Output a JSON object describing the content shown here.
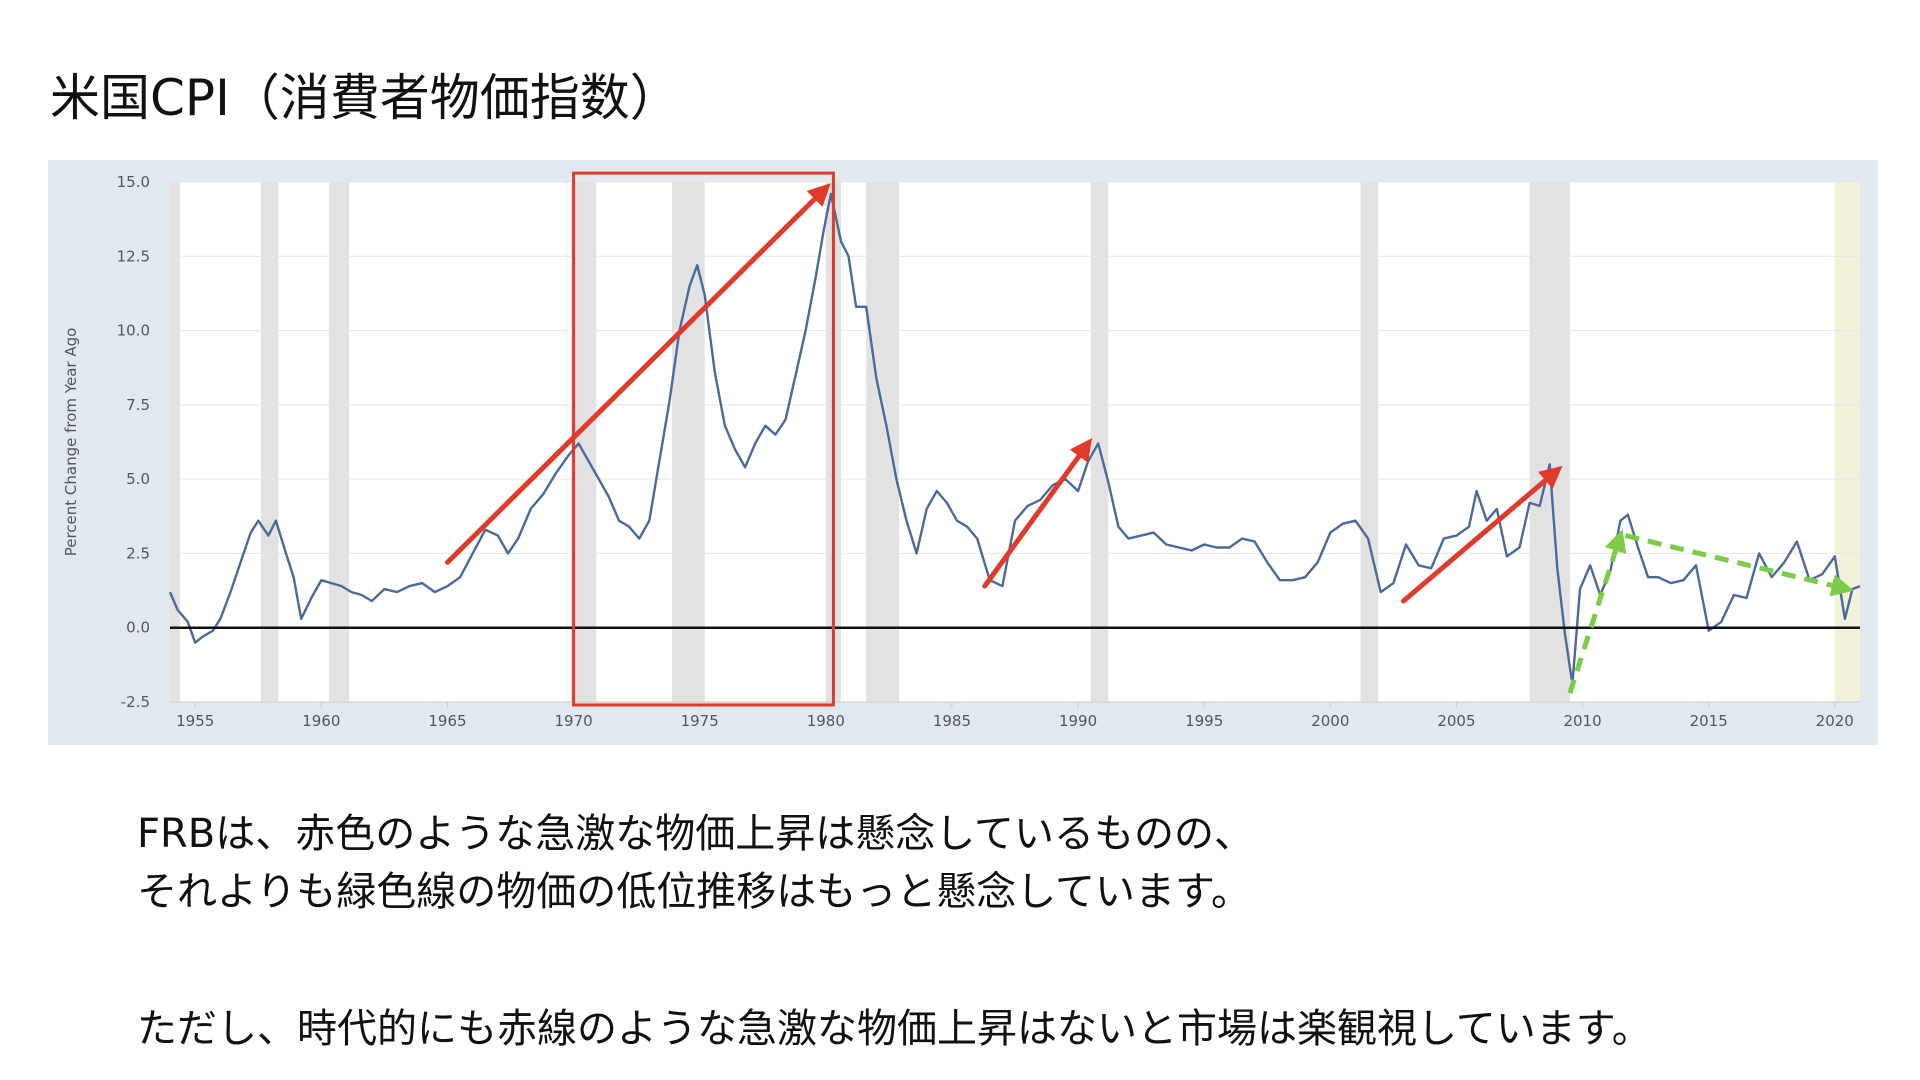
{
  "slide": {
    "title": "米国CPI（消費者物価指数）",
    "text_lines": [
      "FRBは、赤色のような急激な物価上昇は懸念しているものの、",
      "それよりも緑色線の物価の低位推移はもっと懸念しています。",
      "ただし、時代的にも赤線のような急激な物価上昇はないと市場は楽観視しています。"
    ]
  },
  "colors": {
    "series": "#4a6a9c",
    "recession": "#e2e2e2",
    "forecast": "#f2f2dc",
    "annotation_red": "#e03a2a",
    "annotation_green": "#7ccc4a",
    "panel": "#e1e9f0"
  },
  "chart_data": {
    "type": "line",
    "ylabel": "Percent Change from Year Ago",
    "xlim": [
      1954,
      2021
    ],
    "ylim": [
      -2.5,
      15.0
    ],
    "y_ticks": [
      "15.0",
      "12.5",
      "10.0",
      "7.5",
      "5.0",
      "2.5",
      "0.0",
      "-2.5"
    ],
    "y_tick_values": [
      15.0,
      12.5,
      10.0,
      7.5,
      5.0,
      2.5,
      0.0,
      -2.5
    ],
    "x_ticks": [
      "1955",
      "1960",
      "1965",
      "1970",
      "1975",
      "1980",
      "1985",
      "1990",
      "1995",
      "2000",
      "2005",
      "2010",
      "2015",
      "2020"
    ],
    "x_tick_values": [
      1955,
      1960,
      1965,
      1970,
      1975,
      1980,
      1985,
      1990,
      1995,
      2000,
      2005,
      2010,
      2015,
      2020
    ],
    "recessions": [
      [
        1953.6,
        1954.4
      ],
      [
        1957.6,
        1958.3
      ],
      [
        1960.3,
        1961.1
      ],
      [
        1969.9,
        1970.9
      ],
      [
        1973.9,
        1975.2
      ],
      [
        1980.0,
        1980.6
      ],
      [
        1981.6,
        1982.9
      ],
      [
        1990.5,
        1991.2
      ],
      [
        2001.2,
        2001.9
      ],
      [
        2007.9,
        2009.5
      ]
    ],
    "highlight_region": [
      2020.0,
      2021.0
    ],
    "series": [
      {
        "values": [
          [
            1954.0,
            1.2
          ],
          [
            1954.3,
            0.6
          ],
          [
            1954.7,
            0.2
          ],
          [
            1955.0,
            -0.5
          ],
          [
            1955.3,
            -0.3
          ],
          [
            1955.7,
            -0.1
          ],
          [
            1956.0,
            0.3
          ],
          [
            1956.4,
            1.2
          ],
          [
            1956.8,
            2.2
          ],
          [
            1957.2,
            3.2
          ],
          [
            1957.5,
            3.6
          ],
          [
            1957.9,
            3.1
          ],
          [
            1958.2,
            3.6
          ],
          [
            1958.6,
            2.5
          ],
          [
            1958.9,
            1.7
          ],
          [
            1959.2,
            0.3
          ],
          [
            1959.6,
            1.0
          ],
          [
            1960.0,
            1.6
          ],
          [
            1960.4,
            1.5
          ],
          [
            1960.8,
            1.4
          ],
          [
            1961.2,
            1.2
          ],
          [
            1961.6,
            1.1
          ],
          [
            1962.0,
            0.9
          ],
          [
            1962.5,
            1.3
          ],
          [
            1963.0,
            1.2
          ],
          [
            1963.5,
            1.4
          ],
          [
            1964.0,
            1.5
          ],
          [
            1964.5,
            1.2
          ],
          [
            1965.0,
            1.4
          ],
          [
            1965.5,
            1.7
          ],
          [
            1966.0,
            2.5
          ],
          [
            1966.5,
            3.3
          ],
          [
            1967.0,
            3.1
          ],
          [
            1967.4,
            2.5
          ],
          [
            1967.8,
            3.0
          ],
          [
            1968.3,
            4.0
          ],
          [
            1968.8,
            4.5
          ],
          [
            1969.3,
            5.2
          ],
          [
            1969.8,
            5.8
          ],
          [
            1970.2,
            6.2
          ],
          [
            1970.6,
            5.6
          ],
          [
            1971.0,
            5.0
          ],
          [
            1971.4,
            4.4
          ],
          [
            1971.8,
            3.6
          ],
          [
            1972.2,
            3.4
          ],
          [
            1972.6,
            3.0
          ],
          [
            1973.0,
            3.6
          ],
          [
            1973.4,
            5.6
          ],
          [
            1973.8,
            7.6
          ],
          [
            1974.2,
            10.0
          ],
          [
            1974.6,
            11.5
          ],
          [
            1974.9,
            12.2
          ],
          [
            1975.2,
            11.2
          ],
          [
            1975.6,
            8.6
          ],
          [
            1976.0,
            6.8
          ],
          [
            1976.4,
            6.0
          ],
          [
            1976.8,
            5.4
          ],
          [
            1977.2,
            6.2
          ],
          [
            1977.6,
            6.8
          ],
          [
            1978.0,
            6.5
          ],
          [
            1978.4,
            7.0
          ],
          [
            1978.8,
            8.5
          ],
          [
            1979.2,
            10.0
          ],
          [
            1979.6,
            11.8
          ],
          [
            1979.9,
            13.3
          ],
          [
            1980.2,
            14.6
          ],
          [
            1980.6,
            13.0
          ],
          [
            1980.9,
            12.5
          ],
          [
            1981.2,
            10.8
          ],
          [
            1981.6,
            10.8
          ],
          [
            1982.0,
            8.4
          ],
          [
            1982.4,
            6.8
          ],
          [
            1982.8,
            5.0
          ],
          [
            1983.2,
            3.6
          ],
          [
            1983.6,
            2.5
          ],
          [
            1984.0,
            4.0
          ],
          [
            1984.4,
            4.6
          ],
          [
            1984.8,
            4.2
          ],
          [
            1985.2,
            3.6
          ],
          [
            1985.6,
            3.4
          ],
          [
            1986.0,
            3.0
          ],
          [
            1986.5,
            1.6
          ],
          [
            1987.0,
            1.4
          ],
          [
            1987.5,
            3.6
          ],
          [
            1988.0,
            4.1
          ],
          [
            1988.5,
            4.3
          ],
          [
            1989.0,
            4.8
          ],
          [
            1989.5,
            5.0
          ],
          [
            1990.0,
            4.6
          ],
          [
            1990.4,
            5.6
          ],
          [
            1990.8,
            6.2
          ],
          [
            1991.2,
            4.9
          ],
          [
            1991.6,
            3.4
          ],
          [
            1992.0,
            3.0
          ],
          [
            1992.5,
            3.1
          ],
          [
            1993.0,
            3.2
          ],
          [
            1993.5,
            2.8
          ],
          [
            1994.0,
            2.7
          ],
          [
            1994.5,
            2.6
          ],
          [
            1995.0,
            2.8
          ],
          [
            1995.5,
            2.7
          ],
          [
            1996.0,
            2.7
          ],
          [
            1996.5,
            3.0
          ],
          [
            1997.0,
            2.9
          ],
          [
            1997.5,
            2.2
          ],
          [
            1998.0,
            1.6
          ],
          [
            1998.5,
            1.6
          ],
          [
            1999.0,
            1.7
          ],
          [
            1999.5,
            2.2
          ],
          [
            2000.0,
            3.2
          ],
          [
            2000.5,
            3.5
          ],
          [
            2001.0,
            3.6
          ],
          [
            2001.5,
            3.0
          ],
          [
            2002.0,
            1.2
          ],
          [
            2002.5,
            1.5
          ],
          [
            2003.0,
            2.8
          ],
          [
            2003.5,
            2.1
          ],
          [
            2004.0,
            2.0
          ],
          [
            2004.5,
            3.0
          ],
          [
            2005.0,
            3.1
          ],
          [
            2005.5,
            3.4
          ],
          [
            2005.8,
            4.6
          ],
          [
            2006.2,
            3.6
          ],
          [
            2006.6,
            4.0
          ],
          [
            2007.0,
            2.4
          ],
          [
            2007.5,
            2.7
          ],
          [
            2007.9,
            4.2
          ],
          [
            2008.3,
            4.1
          ],
          [
            2008.7,
            5.5
          ],
          [
            2009.0,
            2.0
          ],
          [
            2009.3,
            -0.2
          ],
          [
            2009.6,
            -1.9
          ],
          [
            2009.9,
            1.3
          ],
          [
            2010.3,
            2.1
          ],
          [
            2010.7,
            1.1
          ],
          [
            2011.1,
            1.9
          ],
          [
            2011.5,
            3.6
          ],
          [
            2011.8,
            3.8
          ],
          [
            2012.2,
            2.7
          ],
          [
            2012.6,
            1.7
          ],
          [
            2013.0,
            1.7
          ],
          [
            2013.5,
            1.5
          ],
          [
            2014.0,
            1.6
          ],
          [
            2014.5,
            2.1
          ],
          [
            2015.0,
            -0.1
          ],
          [
            2015.5,
            0.2
          ],
          [
            2016.0,
            1.1
          ],
          [
            2016.5,
            1.0
          ],
          [
            2017.0,
            2.5
          ],
          [
            2017.5,
            1.7
          ],
          [
            2018.0,
            2.2
          ],
          [
            2018.5,
            2.9
          ],
          [
            2019.0,
            1.6
          ],
          [
            2019.5,
            1.8
          ],
          [
            2020.0,
            2.4
          ],
          [
            2020.4,
            0.3
          ],
          [
            2020.7,
            1.3
          ],
          [
            2021.0,
            1.4
          ]
        ]
      }
    ],
    "annotations": {
      "red_arrows": [
        {
          "from": [
            1965.0,
            2.2
          ],
          "to": [
            1980.0,
            14.8
          ]
        },
        {
          "from": [
            1986.3,
            1.4
          ],
          "to": [
            1990.4,
            6.2
          ]
        },
        {
          "from": [
            2002.9,
            0.9
          ],
          "to": [
            2009.0,
            5.3
          ]
        }
      ],
      "red_box": {
        "x": [
          1970.0,
          1980.3
        ],
        "y": [
          -2.6,
          15.3
        ]
      },
      "green_arrows": [
        {
          "from": [
            2009.5,
            -2.2
          ],
          "to": [
            2011.5,
            3.1
          ],
          "dashed": true
        },
        {
          "from": [
            2011.7,
            3.1
          ],
          "to": [
            2020.5,
            1.3
          ],
          "dashed": true
        }
      ]
    }
  }
}
